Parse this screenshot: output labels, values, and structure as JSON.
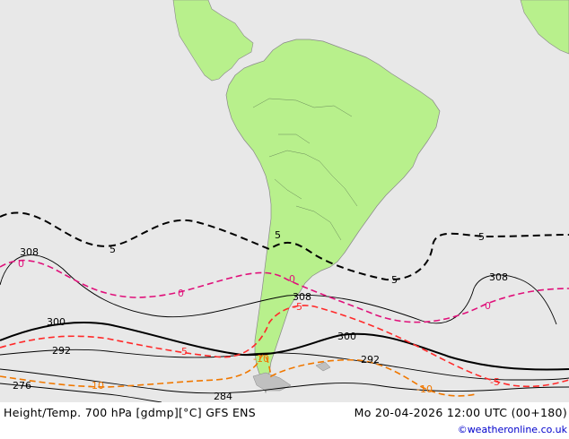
{
  "footer": {
    "left": "Height/Temp. 700 hPa [gdmp][°C] GFS ENS",
    "right": "Mo 20-04-2026 12:00 UTC (00+180)",
    "credit": "©weatheronline.co.uk"
  },
  "colors": {
    "ocean": "#e8e8e8",
    "land": "#b8f08c",
    "land_other": "#c0c0c0",
    "height_line": "#000000",
    "temp_m5": "#ff2a2a",
    "temp_0": "#e0107a",
    "temp_m10": "#f07800",
    "temp_5": "#000000"
  },
  "contour_labels": {
    "h308_a": "308",
    "h308_b": "308",
    "h308_c": "308",
    "h300_a": "300",
    "h300_b": "300",
    "h292_a": "292",
    "h292_b": "292",
    "h284": "284",
    "h276": "276",
    "t5_a": "5",
    "t5_b": "5",
    "t5_c": "5",
    "t5_d": "5",
    "t0_a": "0",
    "t0_b": "0",
    "t0_c": "0",
    "t0_d": "0",
    "tm5_a": "-5",
    "tm5_b": "-5",
    "tm5_c": "-5",
    "tm10_a": "-10",
    "tm10_b": "-10",
    "tm10_c": "-10"
  }
}
